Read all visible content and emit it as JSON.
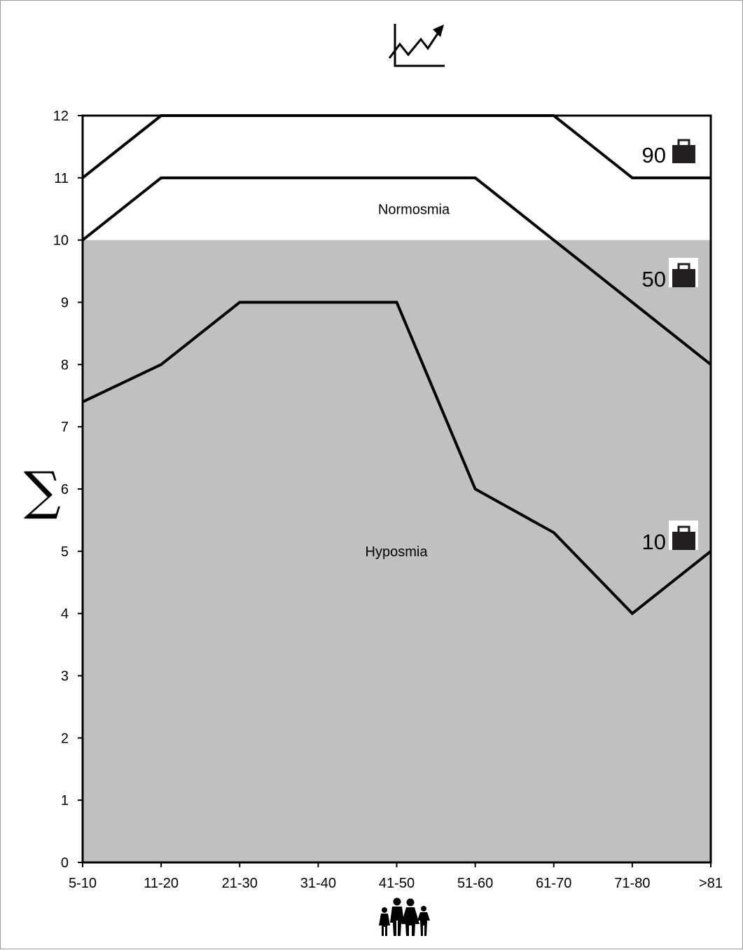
{
  "chart_data": {
    "type": "line",
    "title": "",
    "xlabel": "",
    "ylabel": "∑",
    "categories": [
      "5-10",
      "11-20",
      "21-30",
      "31-40",
      "41-50",
      "51-60",
      "61-70",
      "71-80",
      ">81"
    ],
    "ylim": [
      0,
      12
    ],
    "yticks": [
      0,
      1,
      2,
      3,
      4,
      5,
      6,
      7,
      8,
      9,
      10,
      11,
      12
    ],
    "grid": false,
    "shaded_band": {
      "from": 0,
      "to": 10,
      "color": "#c0c0c0"
    },
    "regions": [
      {
        "label": "Normosmia",
        "y": 10.5
      },
      {
        "label": "Hyposmia",
        "y": 5
      }
    ],
    "series": [
      {
        "label": "90",
        "values": [
          11,
          12,
          12,
          12,
          12,
          12,
          12,
          11,
          11
        ]
      },
      {
        "label": "50",
        "values": [
          10,
          11,
          11,
          11,
          11,
          11,
          10,
          9,
          8
        ]
      },
      {
        "label": "10",
        "values": [
          7.4,
          8,
          9,
          9,
          9,
          6,
          5.3,
          4,
          5
        ]
      }
    ],
    "icons": {
      "title": "trend-chart-icon",
      "x_axis": "family-people-icon",
      "series_marker": "briefcase-icon"
    },
    "colors": {
      "line": "#000000",
      "band": "#c0c0c0",
      "background": "#ffffff"
    }
  }
}
